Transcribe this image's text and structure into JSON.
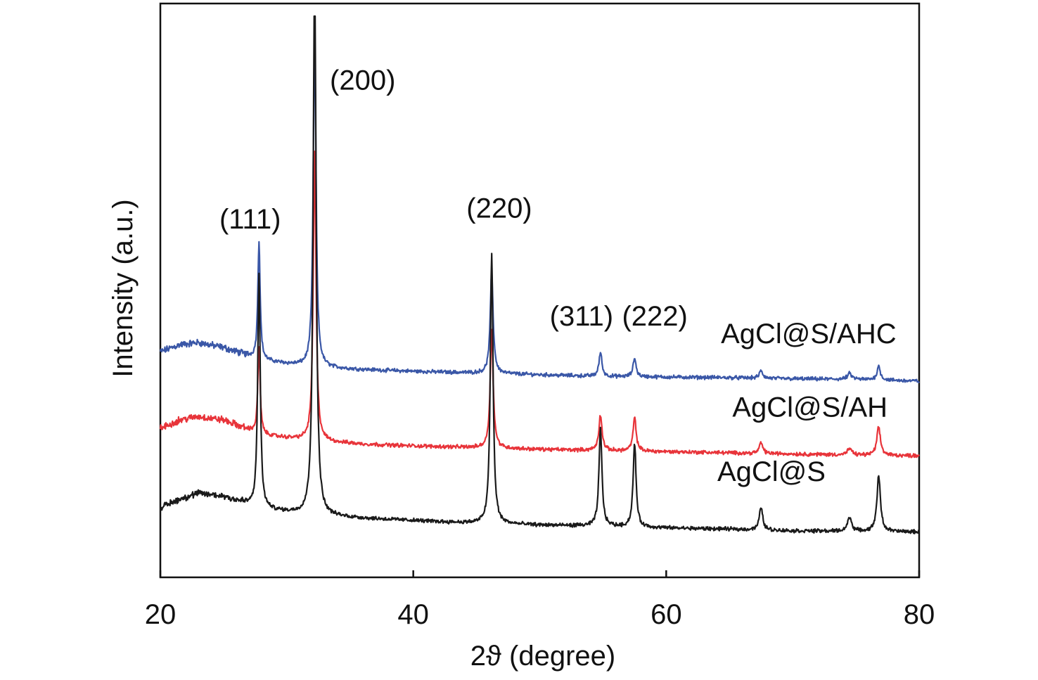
{
  "chart_data": {
    "type": "line",
    "title": "",
    "xlabel": "2ϑ (degree)",
    "ylabel": "Intensity (a.u.)",
    "xlim": [
      20,
      80
    ],
    "ylim": [
      0,
      100
    ],
    "x_ticks": [
      "20",
      "40",
      "60",
      "80"
    ],
    "x_tick_values": [
      20,
      40,
      60,
      80
    ],
    "grid": false,
    "legend": "none",
    "series": [
      {
        "name": "AgCl@S/AHC",
        "color": "#3a57a7",
        "baseline": [
          [
            20,
            39.3
          ],
          [
            21.5,
            40.5
          ],
          [
            23,
            40.9
          ],
          [
            25,
            40.0
          ],
          [
            28,
            37.8
          ],
          [
            32,
            36.6
          ],
          [
            36,
            36.2
          ],
          [
            40,
            35.9
          ],
          [
            45,
            35.6
          ],
          [
            50,
            35.3
          ],
          [
            55,
            35.0
          ],
          [
            60,
            34.9
          ],
          [
            65,
            34.8
          ],
          [
            70,
            34.6
          ],
          [
            75,
            34.5
          ],
          [
            80,
            34.2
          ]
        ],
        "peaks": [
          [
            27.8,
            20.6,
            0.22
          ],
          [
            32.2,
            58.7,
            0.26
          ],
          [
            46.2,
            17.3,
            0.28
          ],
          [
            54.8,
            4.2,
            0.28
          ],
          [
            57.5,
            3.3,
            0.28
          ],
          [
            67.5,
            1.3,
            0.32
          ],
          [
            74.5,
            1.0,
            0.4
          ],
          [
            76.8,
            2.4,
            0.32
          ]
        ]
      },
      {
        "name": "AgCl@S/AH",
        "color": "#e8343a",
        "baseline": [
          [
            20,
            25.9
          ],
          [
            21.5,
            27.4
          ],
          [
            23,
            28.0
          ],
          [
            25,
            27.4
          ],
          [
            28,
            24.8
          ],
          [
            32,
            23.8
          ],
          [
            36,
            23.2
          ],
          [
            40,
            22.9
          ],
          [
            45,
            22.6
          ],
          [
            50,
            22.3
          ],
          [
            55,
            22.1
          ],
          [
            60,
            21.9
          ],
          [
            65,
            21.7
          ],
          [
            70,
            21.5
          ],
          [
            75,
            21.3
          ],
          [
            80,
            21.2
          ]
        ],
        "peaks": [
          [
            27.8,
            15.2,
            0.22
          ],
          [
            32.2,
            50.4,
            0.26
          ],
          [
            46.2,
            20.5,
            0.28
          ],
          [
            54.8,
            6.2,
            0.3
          ],
          [
            57.5,
            5.7,
            0.3
          ],
          [
            67.5,
            1.9,
            0.32
          ],
          [
            74.5,
            1.1,
            0.4
          ],
          [
            76.8,
            4.9,
            0.34
          ]
        ]
      },
      {
        "name": "AgCl@S",
        "color": "#1a1a1a",
        "baseline": [
          [
            20,
            12.1
          ],
          [
            21.5,
            13.6
          ],
          [
            23,
            14.6
          ],
          [
            25,
            14.1
          ],
          [
            28,
            11.9
          ],
          [
            32,
            10.8
          ],
          [
            36,
            10.3
          ],
          [
            40,
            9.9
          ],
          [
            45,
            9.4
          ],
          [
            50,
            9.1
          ],
          [
            55,
            8.9
          ],
          [
            60,
            8.6
          ],
          [
            65,
            8.4
          ],
          [
            70,
            8.1
          ],
          [
            75,
            8.0
          ],
          [
            80,
            7.9
          ]
        ],
        "peaks": [
          [
            27.8,
            40.9,
            0.24
          ],
          [
            32.2,
            101.0,
            0.26
          ],
          [
            46.2,
            47.0,
            0.26
          ],
          [
            54.8,
            17.0,
            0.28
          ],
          [
            57.5,
            14.6,
            0.28
          ],
          [
            67.5,
            4.0,
            0.32
          ],
          [
            74.5,
            2.4,
            0.4
          ],
          [
            76.8,
            9.6,
            0.34
          ]
        ]
      }
    ],
    "series_labels": [
      {
        "text": "AgCl@S/AHC",
        "x": 78.2,
        "y": 40.8
      },
      {
        "text": "AgCl@S/AH",
        "x": 77.5,
        "y": 28.0
      },
      {
        "text": "AgCl@S",
        "x": 72.6,
        "y": 16.8
      }
    ],
    "annotations": [
      {
        "text": "(111)",
        "x": 27.1,
        "y": 60.8
      },
      {
        "text": "(200)",
        "x": 36.0,
        "y": 85.0
      },
      {
        "text": "(220)",
        "x": 46.8,
        "y": 62.7
      },
      {
        "text": "(311)",
        "x": 53.3,
        "y": 43.9
      },
      {
        "text": "(222)",
        "x": 59.1,
        "y": 43.9
      }
    ]
  }
}
